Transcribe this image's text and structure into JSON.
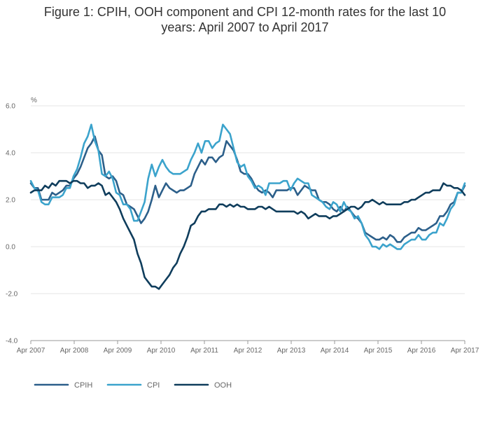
{
  "title_line1": "Figure 1: CPIH, OOH component and CPI 12-month rates for the last 10",
  "title_line2": "years: April 2007 to April 2017",
  "chart_data": {
    "type": "line",
    "title": "Figure 1: CPIH, OOH component and CPI 12-month rates for the last 10 years: April 2007 to April 2017",
    "ylabel": "%",
    "ylim": [
      -4.0,
      6.0
    ],
    "yticks": [
      -4.0,
      -2.0,
      0.0,
      2.0,
      4.0,
      6.0
    ],
    "ytick_labels": [
      "-4.0",
      "-2.0",
      "0.0",
      "2.0",
      "4.0",
      "6.0"
    ],
    "xticks": [
      "Apr 2007",
      "Apr 2008",
      "Apr 2009",
      "Apr 2010",
      "Apr 2011",
      "Apr 2012",
      "Apr 2013",
      "Apr 2014",
      "Apr 2015",
      "Apr 2016",
      "Apr 2017"
    ],
    "x_start": "Apr 2007",
    "x_end": "Apr 2017",
    "grid": true,
    "legend": "bottom",
    "series": [
      {
        "name": "CPIH",
        "color": "#2c5f8a",
        "values": [
          2.7,
          2.5,
          2.5,
          2.0,
          2.0,
          2.0,
          2.3,
          2.2,
          2.3,
          2.4,
          2.6,
          2.6,
          2.9,
          3.1,
          3.4,
          3.8,
          4.2,
          4.4,
          4.7,
          4.1,
          3.9,
          3.0,
          2.9,
          3.0,
          2.8,
          2.3,
          2.2,
          1.8,
          1.7,
          1.6,
          1.3,
          1.0,
          1.2,
          1.5,
          2.0,
          2.6,
          2.1,
          2.4,
          2.7,
          2.5,
          2.4,
          2.3,
          2.4,
          2.4,
          2.5,
          2.6,
          3.1,
          3.4,
          3.7,
          3.5,
          3.8,
          3.8,
          3.6,
          3.8,
          3.9,
          4.5,
          4.3,
          4.1,
          3.7,
          3.2,
          3.1,
          3.1,
          2.9,
          2.6,
          2.4,
          2.3,
          2.4,
          2.3,
          2.1,
          2.4,
          2.4,
          2.4,
          2.4,
          2.5,
          2.5,
          2.2,
          2.4,
          2.6,
          2.5,
          2.4,
          2.4,
          2.0,
          1.9,
          1.9,
          1.8,
          1.6,
          1.5,
          1.7,
          1.5,
          1.7,
          1.5,
          1.3,
          1.2,
          1.0,
          0.6,
          0.5,
          0.4,
          0.3,
          0.3,
          0.4,
          0.3,
          0.5,
          0.4,
          0.2,
          0.2,
          0.4,
          0.5,
          0.6,
          0.6,
          0.8,
          0.7,
          0.7,
          0.8,
          0.9,
          1.0,
          1.3,
          1.3,
          1.5,
          1.8,
          1.9,
          2.3,
          2.3,
          2.6
        ]
      },
      {
        "name": "CPI",
        "color": "#3ba3cc",
        "values": [
          2.8,
          2.5,
          2.4,
          1.9,
          1.8,
          1.8,
          2.1,
          2.1,
          2.1,
          2.2,
          2.5,
          2.5,
          3.0,
          3.3,
          3.8,
          4.4,
          4.7,
          5.2,
          4.5,
          4.1,
          3.1,
          3.0,
          3.2,
          2.9,
          2.3,
          2.2,
          1.8,
          1.8,
          1.6,
          1.1,
          1.1,
          1.5,
          1.9,
          2.9,
          3.5,
          3.0,
          3.4,
          3.7,
          3.4,
          3.2,
          3.1,
          3.1,
          3.1,
          3.2,
          3.3,
          3.7,
          4.0,
          4.4,
          4.0,
          4.5,
          4.5,
          4.2,
          4.4,
          4.5,
          5.2,
          5.0,
          4.8,
          4.2,
          3.6,
          3.4,
          3.5,
          3.0,
          2.8,
          2.5,
          2.6,
          2.5,
          2.2,
          2.7,
          2.7,
          2.7,
          2.7,
          2.8,
          2.8,
          2.4,
          2.7,
          2.9,
          2.8,
          2.7,
          2.7,
          2.2,
          2.1,
          2.0,
          1.9,
          1.7,
          1.6,
          1.9,
          1.8,
          1.5,
          1.9,
          1.6,
          1.5,
          1.2,
          1.3,
          1.0,
          0.5,
          0.3,
          0.0,
          0.0,
          -0.1,
          0.1,
          0.0,
          0.1,
          0.0,
          -0.1,
          -0.1,
          0.1,
          0.2,
          0.3,
          0.3,
          0.5,
          0.3,
          0.3,
          0.5,
          0.6,
          0.6,
          1.0,
          0.9,
          1.2,
          1.6,
          1.8,
          2.3,
          2.3,
          2.7
        ]
      },
      {
        "name": "OOH",
        "color": "#0f3d5c",
        "values": [
          2.3,
          2.4,
          2.4,
          2.4,
          2.6,
          2.5,
          2.7,
          2.6,
          2.8,
          2.8,
          2.8,
          2.7,
          2.8,
          2.8,
          2.7,
          2.7,
          2.5,
          2.6,
          2.6,
          2.7,
          2.6,
          2.2,
          2.3,
          2.1,
          1.9,
          1.6,
          1.2,
          0.9,
          0.6,
          0.3,
          -0.3,
          -0.7,
          -1.3,
          -1.5,
          -1.7,
          -1.7,
          -1.8,
          -1.6,
          -1.4,
          -1.2,
          -0.9,
          -0.7,
          -0.3,
          0.0,
          0.4,
          0.9,
          1.0,
          1.3,
          1.5,
          1.5,
          1.6,
          1.6,
          1.6,
          1.8,
          1.8,
          1.7,
          1.8,
          1.7,
          1.8,
          1.7,
          1.7,
          1.6,
          1.6,
          1.6,
          1.7,
          1.7,
          1.6,
          1.7,
          1.6,
          1.5,
          1.5,
          1.5,
          1.5,
          1.5,
          1.5,
          1.4,
          1.5,
          1.4,
          1.2,
          1.3,
          1.4,
          1.3,
          1.3,
          1.3,
          1.2,
          1.3,
          1.3,
          1.4,
          1.5,
          1.6,
          1.7,
          1.7,
          1.6,
          1.7,
          1.9,
          1.9,
          2.0,
          1.9,
          1.8,
          1.9,
          1.8,
          1.8,
          1.8,
          1.8,
          1.8,
          1.9,
          1.9,
          2.0,
          2.0,
          2.1,
          2.2,
          2.3,
          2.3,
          2.4,
          2.4,
          2.4,
          2.7,
          2.6,
          2.6,
          2.5,
          2.5,
          2.4,
          2.2
        ]
      }
    ]
  }
}
